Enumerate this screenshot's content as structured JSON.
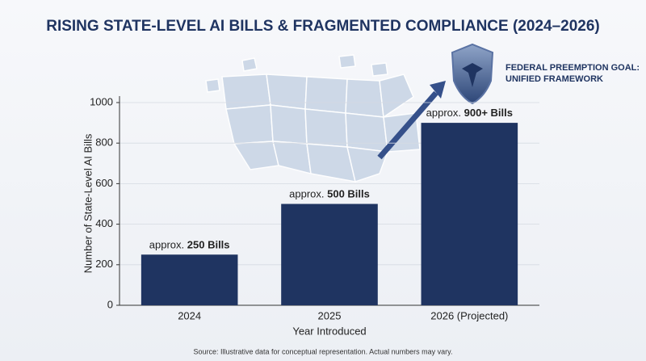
{
  "chart_data": {
    "type": "bar",
    "title": "RISING STATE-LEVEL AI BILLS & FRAGMENTED COMPLIANCE (2024–2026)",
    "x_label": "Year Introduced",
    "y_label": "Number of State-Level AI Bills",
    "categories": [
      "2024",
      "2025",
      "2026 (Projected)"
    ],
    "values": [
      250,
      500,
      900
    ],
    "value_labels": [
      "approx. 250 Bills",
      "approx. 500 Bills",
      "approx. 900+ Bills"
    ],
    "color": "#1f3461",
    "ylim": [
      0,
      1000
    ],
    "yticks": [
      0,
      200,
      400,
      600,
      800,
      1000
    ],
    "grid": true,
    "annotation": [
      "FEDERAL PREEMPTION GOAL:",
      "UNIFIED FRAMEWORK"
    ],
    "source": "Source: Illustrative data for conceptual representation. Actual numbers may vary."
  }
}
